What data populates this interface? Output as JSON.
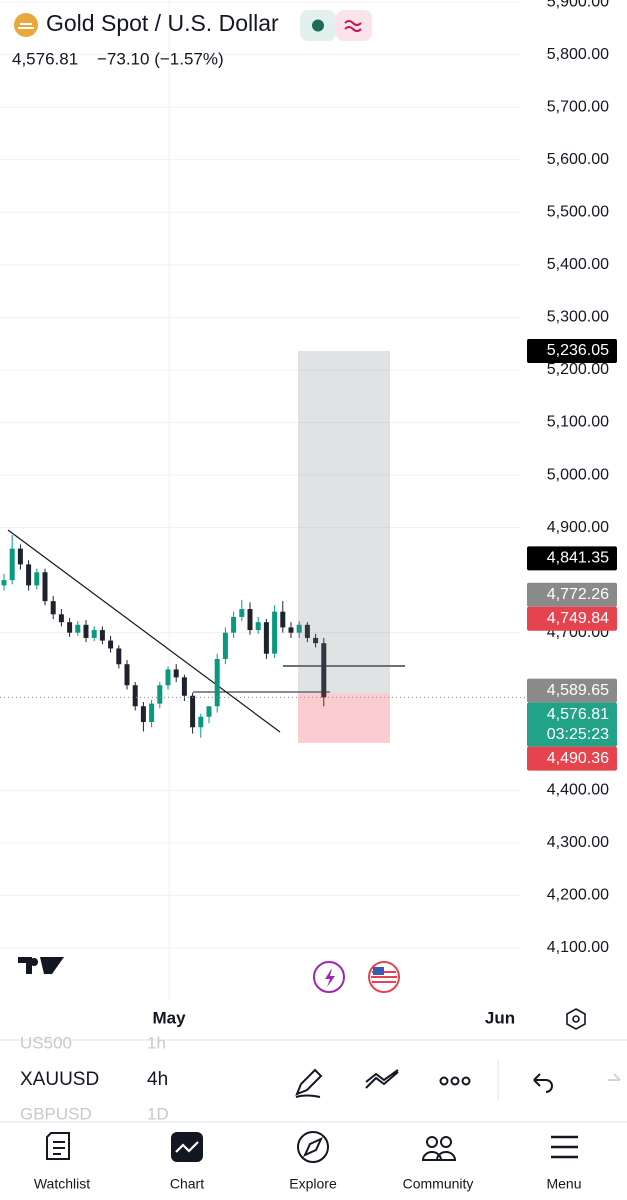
{
  "header": {
    "title": "Gold Spot / U.S. Dollar",
    "price": "4,576.81",
    "change": "−73.10 (−1.57%)"
  },
  "chart_data": {
    "type": "candlestick",
    "up_color": "#089981",
    "down_color": "#1e222d",
    "open": [
      4790,
      4800,
      4860,
      4830,
      4790,
      4815,
      4760,
      4735,
      4720,
      4700,
      4715,
      4690,
      4705,
      4685,
      4670,
      4640,
      4600,
      4560,
      4530,
      4565,
      4600,
      4630,
      4615,
      4580,
      4520,
      4540,
      4560,
      4650,
      4700,
      4730,
      4745,
      4705,
      4720,
      4660,
      4740,
      4710,
      4700,
      4715,
      4690,
      4680
    ],
    "high": [
      4812,
      4886,
      4868,
      4838,
      4822,
      4822,
      4770,
      4745,
      4728,
      4722,
      4724,
      4712,
      4712,
      4694,
      4676,
      4648,
      4606,
      4568,
      4572,
      4606,
      4636,
      4640,
      4620,
      4586,
      4546,
      4550,
      4660,
      4710,
      4740,
      4762,
      4758,
      4730,
      4726,
      4752,
      4760,
      4720,
      4722,
      4720,
      4698,
      4690
    ],
    "low": [
      4780,
      4792,
      4820,
      4780,
      4782,
      4752,
      4726,
      4712,
      4692,
      4694,
      4682,
      4684,
      4678,
      4662,
      4632,
      4592,
      4552,
      4512,
      4520,
      4556,
      4592,
      4606,
      4570,
      4508,
      4500,
      4528,
      4548,
      4640,
      4690,
      4722,
      4696,
      4698,
      4650,
      4652,
      4700,
      4690,
      4690,
      4682,
      4672,
      4560
    ],
    "close": [
      4800,
      4860,
      4830,
      4790,
      4815,
      4760,
      4735,
      4720,
      4700,
      4715,
      4690,
      4705,
      4685,
      4670,
      4640,
      4600,
      4560,
      4530,
      4565,
      4600,
      4630,
      4615,
      4580,
      4520,
      4540,
      4560,
      4650,
      4700,
      4730,
      4745,
      4705,
      4720,
      4660,
      4740,
      4710,
      4700,
      4715,
      4690,
      4680,
      4576.81
    ],
    "ylim": [
      4001,
      5904
    ],
    "yticks": [
      {
        "value": 4100,
        "label": "4,100.00"
      },
      {
        "value": 4200,
        "label": "4,200.00"
      },
      {
        "value": 4300,
        "label": "4,300.00"
      },
      {
        "value": 4400,
        "label": "4,400.00"
      },
      {
        "value": 4700,
        "label": "4,700.00"
      },
      {
        "value": 4900,
        "label": "4,900.00"
      },
      {
        "value": 5000,
        "label": "5,000.00"
      },
      {
        "value": 5100,
        "label": "5,100.00"
      },
      {
        "value": 5200,
        "label": "5,200.00"
      },
      {
        "value": 5300,
        "label": "5,300.00"
      },
      {
        "value": 5400,
        "label": "5,400.00"
      },
      {
        "value": 5500,
        "label": "5,500.00"
      },
      {
        "value": 5600,
        "label": "5,600.00"
      },
      {
        "value": 5700,
        "label": "5,700.00"
      },
      {
        "value": 5800,
        "label": "5,800.00"
      },
      {
        "value": 5900,
        "label": "5,900.00"
      }
    ],
    "x_labels": [
      "May",
      "Jun"
    ],
    "price_tags": [
      {
        "value": 5236.05,
        "label": "5,236.05",
        "color": "#000000"
      },
      {
        "value": 4841.35,
        "label": "4,841.35",
        "color": "#000000"
      },
      {
        "value": 4772.26,
        "label": "4,772.26",
        "color": "#8a8a8a"
      },
      {
        "value": 4749.84,
        "label": "4,749.84",
        "color": "#e5444f"
      },
      {
        "value": 4589.65,
        "label": "4,589.65",
        "color": "#8a8a8a"
      },
      {
        "value": 4576.81,
        "label": "4,576.81",
        "color": "#22a387",
        "countdown": "03:25:23"
      },
      {
        "value": 4490.36,
        "label": "4,490.36",
        "color": "#e5444f"
      }
    ]
  },
  "toolbar": {
    "symbols": [
      {
        "symbol": "US500",
        "interval": "1h"
      },
      {
        "symbol": "XAUUSD",
        "interval": "4h"
      },
      {
        "symbol": "GBPUSD",
        "interval": "1D"
      }
    ]
  },
  "tabs": [
    "Watchlist",
    "Chart",
    "Explore",
    "Community",
    "Menu"
  ]
}
